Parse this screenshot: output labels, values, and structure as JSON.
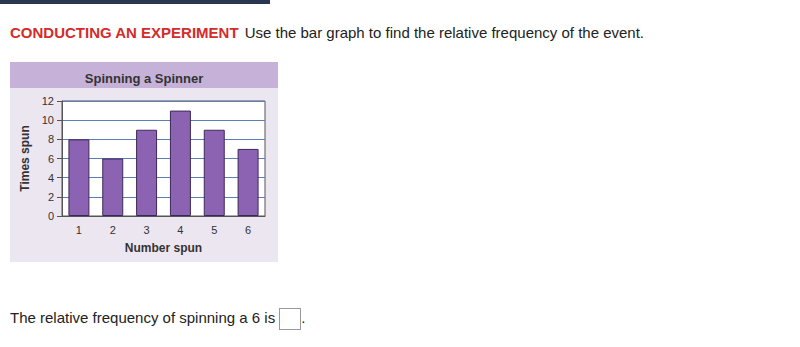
{
  "header": {
    "label": "CONDUCTING AN EXPERIMENT",
    "instruction": "Use the bar graph to find the relative frequency of the event."
  },
  "chart_data": {
    "type": "bar",
    "title": "Spinning a Spinner",
    "x_label": "Number spun",
    "y_label": "Times spun",
    "categories": [
      "1",
      "2",
      "3",
      "4",
      "5",
      "6"
    ],
    "values": [
      8,
      6,
      9,
      11,
      9,
      7
    ],
    "color": "#8c62b3",
    "ylim": [
      0,
      12
    ],
    "yticks": [
      0,
      2,
      4,
      6,
      8,
      10,
      12
    ],
    "grid": true
  },
  "question": {
    "text": "The relative frequency of spinning a 6 is",
    "after": "."
  }
}
